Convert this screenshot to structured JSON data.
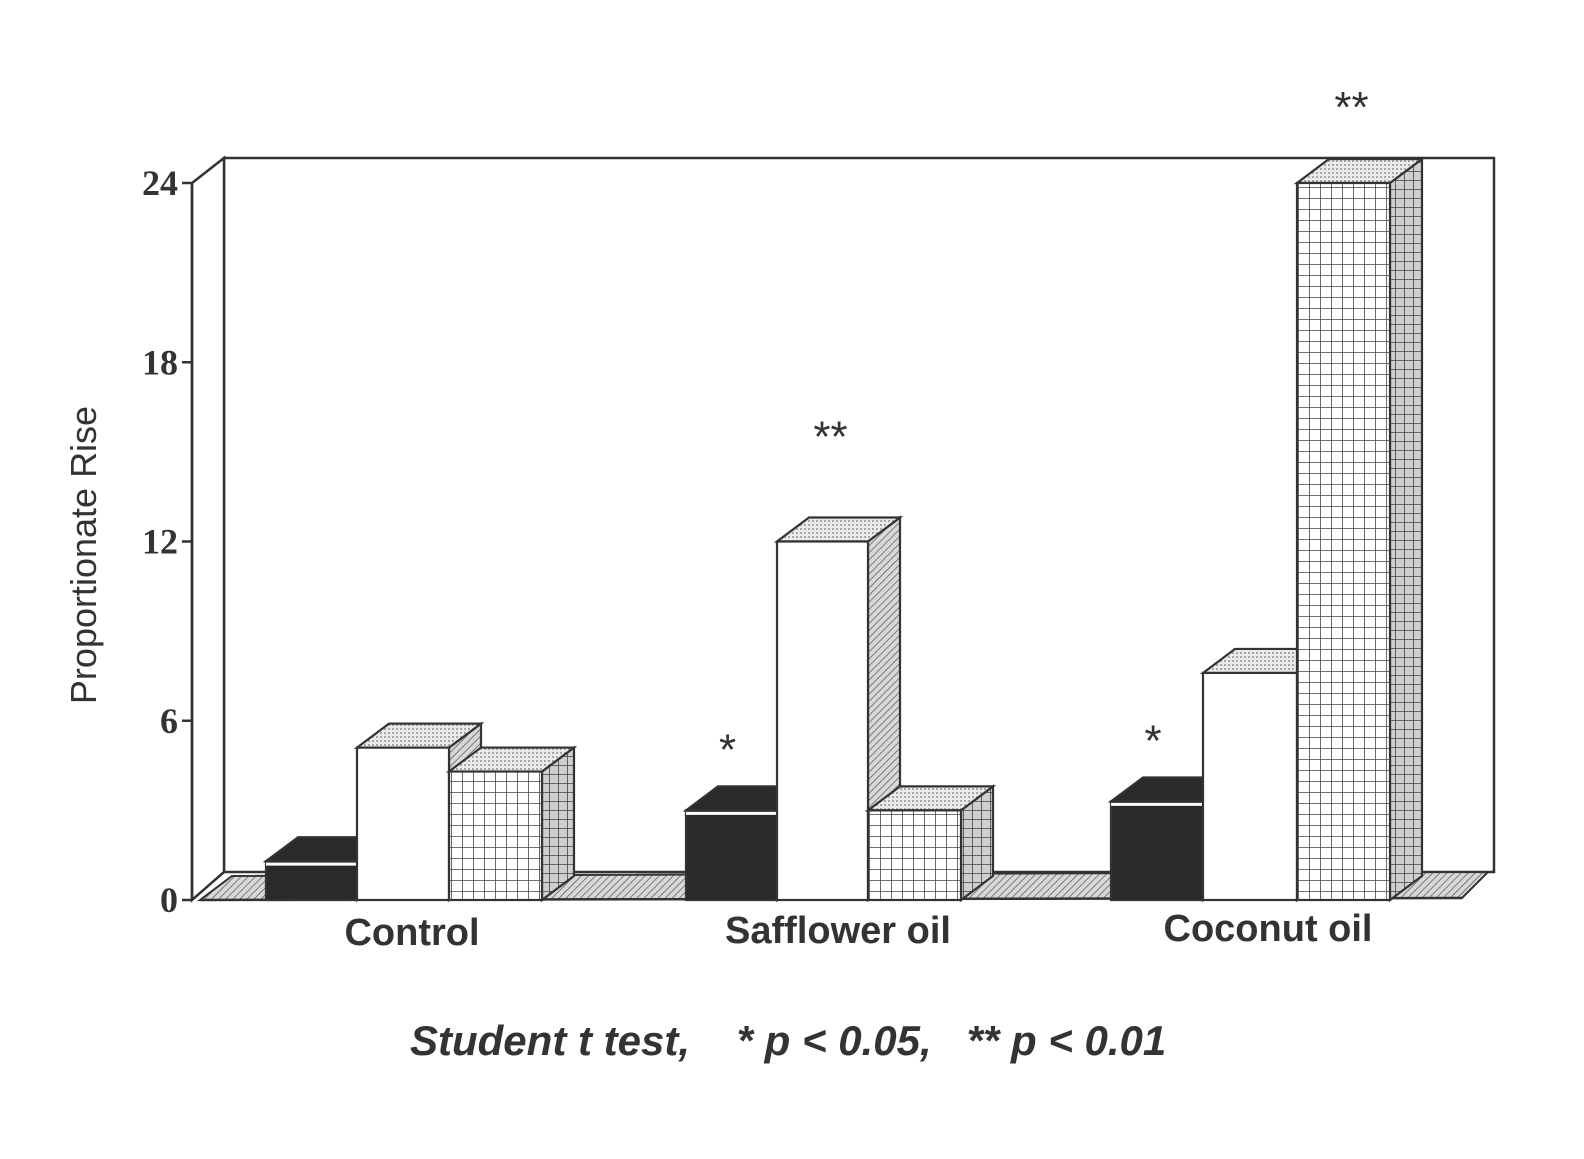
{
  "chart_data": {
    "type": "bar",
    "title": "",
    "xlabel": "",
    "ylabel": "Proportionate Rise",
    "ylim": [
      0,
      24
    ],
    "yticks": [
      "0",
      "6",
      "12",
      "18",
      "24"
    ],
    "categories": [
      "Control",
      "Safflower oil",
      "Coconut oil"
    ],
    "series": [
      {
        "fill": "solid-black",
        "values": [
          1.3,
          3.0,
          3.3
        ]
      },
      {
        "fill": "white",
        "values": [
          5.1,
          12.0,
          7.6
        ]
      },
      {
        "fill": "grid",
        "values": [
          4.3,
          3.0,
          24.0
        ]
      }
    ],
    "significance": [
      {
        "category": "Safflower oil",
        "series_index": 0,
        "mark": "*"
      },
      {
        "category": "Safflower oil",
        "series_index": 1,
        "mark": "**"
      },
      {
        "category": "Coconut oil",
        "series_index": 0,
        "mark": "*"
      },
      {
        "category": "Coconut oil",
        "series_index": 2,
        "mark": "**"
      }
    ],
    "footnote": "Student t test,    * p < 0.05,   ** p < 0.01",
    "grid": false,
    "style": "3d-bars",
    "colors": {
      "ink": "#333333",
      "bar_dark": "#2a2a2a",
      "paper": "#ffffff"
    }
  }
}
